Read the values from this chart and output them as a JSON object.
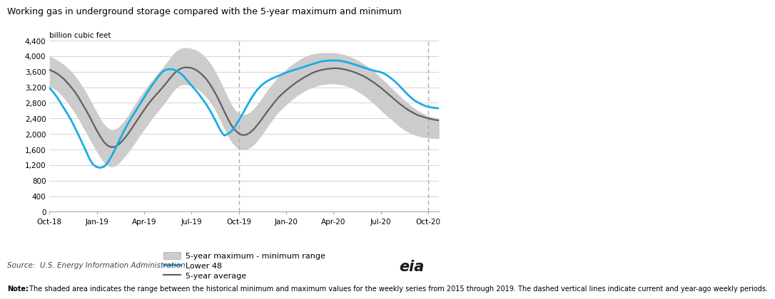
{
  "title": "Working gas in underground storage compared with the 5-year maximum and minimum",
  "ylabel": "billion cubic feet",
  "source": "Source:  U.S. Energy Information Administration",
  "note_bold": "Note:",
  "note_rest": " The shaded area indicates the range between the historical minimum and maximum values for the weekly series from 2015 through 2019. The dashed vertical lines indicate current and year-ago weekly periods.",
  "ylim": [
    0,
    4400
  ],
  "yticks": [
    0,
    400,
    800,
    1200,
    1600,
    2000,
    2400,
    2800,
    3200,
    3600,
    4000,
    4400
  ],
  "x_tick_labels": [
    "Oct-18",
    "Jan-19",
    "Apr-19",
    "Jul-19",
    "Oct-19",
    "Jan-20",
    "Apr-20",
    "Jul-20",
    "Oct-20"
  ],
  "x_tick_positions": [
    0,
    13,
    26,
    39,
    52,
    65,
    78,
    91,
    104
  ],
  "dashed_vline_positions": [
    52,
    104
  ],
  "total_points": 108,
  "colors": {
    "lower48": "#1AACE8",
    "avg5yr": "#606060",
    "range_fill": "#CCCCCC",
    "background": "#FFFFFF",
    "grid": "#CCCCCC",
    "spine": "#AAAAAA",
    "vline": "#AAAAAA"
  },
  "lower48": [
    3190,
    3080,
    2960,
    2810,
    2660,
    2510,
    2350,
    2160,
    1970,
    1770,
    1570,
    1360,
    1210,
    1150,
    1130,
    1160,
    1260,
    1420,
    1600,
    1800,
    1990,
    2170,
    2340,
    2490,
    2640,
    2790,
    2940,
    3090,
    3230,
    3360,
    3490,
    3600,
    3650,
    3670,
    3660,
    3620,
    3560,
    3470,
    3360,
    3250,
    3140,
    3030,
    2900,
    2770,
    2620,
    2450,
    2270,
    2080,
    1960,
    2000,
    2070,
    2200,
    2350,
    2510,
    2680,
    2850,
    3000,
    3130,
    3230,
    3310,
    3370,
    3420,
    3460,
    3500,
    3540,
    3580,
    3610,
    3640,
    3670,
    3700,
    3730,
    3760,
    3790,
    3820,
    3850,
    3870,
    3880,
    3890,
    3890,
    3890,
    3880,
    3860,
    3840,
    3810,
    3780,
    3750,
    3720,
    3690,
    3660,
    3630,
    3610,
    3590,
    3550,
    3490,
    3420,
    3340,
    3250,
    3150,
    3050,
    2960,
    2880,
    2820,
    2770,
    2730,
    2700,
    2680,
    2670,
    2660
  ],
  "avg5yr": [
    3650,
    3610,
    3560,
    3490,
    3410,
    3310,
    3200,
    3080,
    2940,
    2780,
    2620,
    2450,
    2270,
    2090,
    1930,
    1790,
    1700,
    1660,
    1670,
    1730,
    1820,
    1930,
    2060,
    2200,
    2340,
    2480,
    2620,
    2750,
    2870,
    2980,
    3080,
    3190,
    3300,
    3420,
    3530,
    3620,
    3680,
    3710,
    3710,
    3700,
    3660,
    3600,
    3520,
    3420,
    3290,
    3140,
    2970,
    2780,
    2580,
    2390,
    2220,
    2100,
    2010,
    1970,
    1980,
    2030,
    2110,
    2220,
    2340,
    2470,
    2600,
    2720,
    2840,
    2950,
    3040,
    3120,
    3200,
    3270,
    3340,
    3400,
    3460,
    3510,
    3560,
    3600,
    3630,
    3650,
    3670,
    3680,
    3690,
    3690,
    3680,
    3660,
    3640,
    3610,
    3580,
    3540,
    3500,
    3450,
    3390,
    3330,
    3260,
    3190,
    3110,
    3030,
    2950,
    2870,
    2790,
    2720,
    2650,
    2590,
    2540,
    2490,
    2460,
    2430,
    2400,
    2380,
    2360,
    2350
  ],
  "range_max": [
    4000,
    3960,
    3910,
    3850,
    3780,
    3700,
    3610,
    3500,
    3370,
    3230,
    3080,
    2910,
    2740,
    2560,
    2390,
    2250,
    2160,
    2110,
    2120,
    2180,
    2280,
    2400,
    2540,
    2690,
    2840,
    2980,
    3110,
    3240,
    3360,
    3470,
    3580,
    3700,
    3820,
    3940,
    4060,
    4150,
    4200,
    4220,
    4220,
    4200,
    4170,
    4120,
    4050,
    3960,
    3840,
    3700,
    3530,
    3340,
    3140,
    2940,
    2760,
    2620,
    2530,
    2500,
    2510,
    2560,
    2640,
    2750,
    2880,
    3010,
    3140,
    3260,
    3380,
    3490,
    3580,
    3660,
    3740,
    3810,
    3870,
    3930,
    3980,
    4020,
    4050,
    4070,
    4080,
    4090,
    4090,
    4090,
    4090,
    4080,
    4060,
    4040,
    4010,
    3970,
    3930,
    3880,
    3820,
    3760,
    3690,
    3610,
    3530,
    3440,
    3360,
    3270,
    3180,
    3090,
    3000,
    2910,
    2830,
    2750,
    2680,
    2610,
    2560,
    2510,
    2470,
    2440,
    2410,
    2390
  ],
  "range_min": [
    3240,
    3180,
    3110,
    3020,
    2920,
    2800,
    2670,
    2530,
    2380,
    2210,
    2040,
    1870,
    1700,
    1540,
    1390,
    1260,
    1180,
    1150,
    1170,
    1240,
    1340,
    1450,
    1570,
    1700,
    1840,
    1980,
    2110,
    2240,
    2370,
    2490,
    2600,
    2720,
    2840,
    2970,
    3100,
    3200,
    3250,
    3270,
    3260,
    3230,
    3190,
    3130,
    3050,
    2950,
    2840,
    2690,
    2520,
    2330,
    2130,
    1950,
    1790,
    1680,
    1620,
    1590,
    1600,
    1640,
    1710,
    1810,
    1930,
    2060,
    2200,
    2330,
    2460,
    2570,
    2660,
    2750,
    2830,
    2910,
    2980,
    3040,
    3100,
    3150,
    3190,
    3220,
    3250,
    3270,
    3280,
    3290,
    3290,
    3280,
    3270,
    3250,
    3220,
    3180,
    3130,
    3070,
    3010,
    2940,
    2860,
    2780,
    2700,
    2610,
    2520,
    2440,
    2360,
    2280,
    2200,
    2130,
    2070,
    2020,
    1980,
    1950,
    1920,
    1910,
    1900,
    1890,
    1880,
    1880
  ]
}
